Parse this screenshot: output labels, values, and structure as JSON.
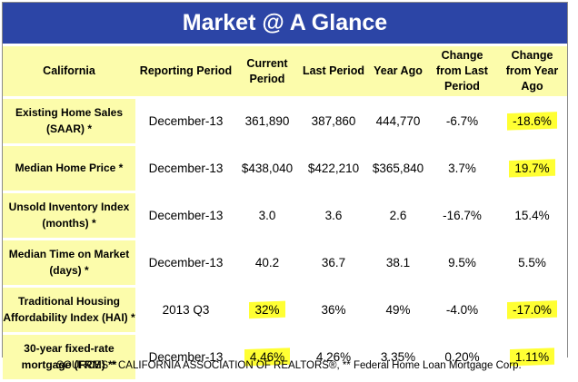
{
  "title": "Market @ A Glance",
  "headers": [
    "California",
    "Reporting Period",
    "Current Period",
    "Last Period",
    "Year Ago",
    "Change from Last Period",
    "Change from Year Ago"
  ],
  "rows": [
    {
      "label": "Existing Home Sales (SAAR)  *",
      "period": "December-13",
      "current": "361,890",
      "last": "387,860",
      "year_ago": "444,770",
      "chg_last": "-6.7%",
      "chg_year": "-18.6%"
    },
    {
      "label": "Median Home Price  *",
      "period": "December-13",
      "current": "$438,040",
      "last": "$422,210",
      "year_ago": "$365,840",
      "chg_last": "3.7%",
      "chg_year": "19.7%"
    },
    {
      "label": "Unsold Inventory Index (months)  *",
      "period": "December-13",
      "current": "3.0",
      "last": "3.6",
      "year_ago": "2.6",
      "chg_last": "-16.7%",
      "chg_year": "15.4%"
    },
    {
      "label": "Median Time on Market (days)  *",
      "period": "December-13",
      "current": "40.2",
      "last": "36.7",
      "year_ago": "38.1",
      "chg_last": "9.5%",
      "chg_year": "5.5%"
    },
    {
      "label": "Traditional Housing Affordability Index (HAI) *",
      "period": "2013 Q3",
      "current": "32%",
      "last": "36%",
      "year_ago": "49%",
      "chg_last": "-4.0%",
      "chg_year": "-17.0%"
    },
    {
      "label": "30-year fixed-rate mortgage (FRM)  **",
      "period": "December-13",
      "current": "4.46%",
      "last": "4.26%",
      "year_ago": "3.35%",
      "chg_last": "0.20%",
      "chg_year": "1.11%"
    }
  ],
  "footer": "SOURCES * CALIFORNIA ASSOCIATION OF REALTORS®, ** Federal Home Loan Mortgage Corp.",
  "colors": {
    "title_bg": "#2c45a6",
    "label_bg": "#fcfcab",
    "highlight": "#ffff33"
  }
}
